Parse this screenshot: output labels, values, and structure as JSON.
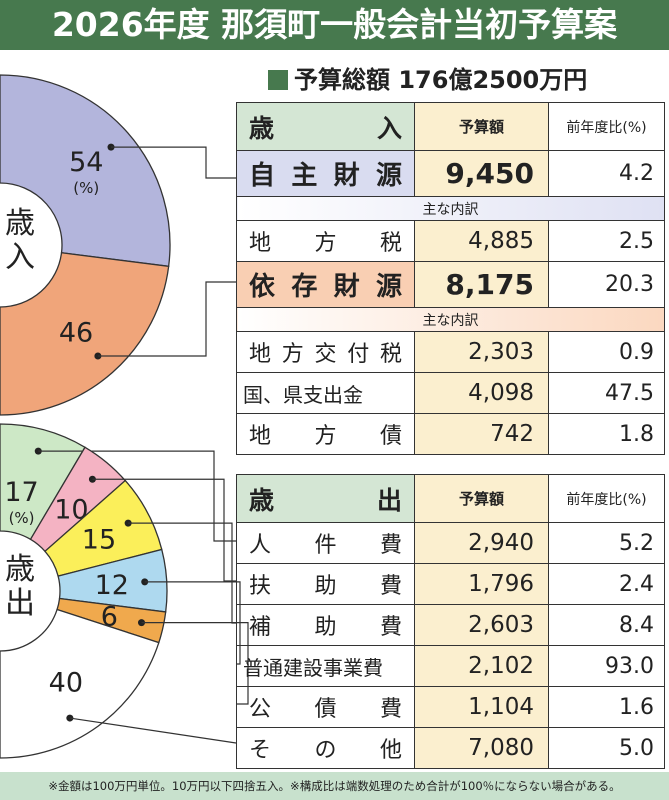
{
  "title": "2026年度 那須町一般会計当初予算案",
  "total_label": "予算総額 176億2500万円",
  "revenue_table": {
    "header": {
      "label": "歳入",
      "col_amount": "予算額",
      "col_pct": "前年度比(%)"
    },
    "rows": [
      {
        "label": "自主財源",
        "amount": "9,450",
        "pct": "4.2"
      },
      {
        "sub": "主な内訳"
      },
      {
        "label": "地方税",
        "amount": "4,885",
        "pct": "2.5"
      },
      {
        "label": "依存財源",
        "amount": "8,175",
        "pct": "20.3"
      },
      {
        "sub": "主な内訳"
      },
      {
        "label": "地方交付税",
        "amount": "2,303",
        "pct": "0.9"
      },
      {
        "label": "国、県支出金",
        "amount": "4,098",
        "pct": "47.5"
      },
      {
        "label": "地方債",
        "amount": "742",
        "pct": "1.8"
      }
    ]
  },
  "expense_table": {
    "header": {
      "label": "歳出",
      "col_amount": "予算額",
      "col_pct": "前年度比(%)"
    },
    "rows": [
      {
        "label": "人件費",
        "amount": "2,940",
        "pct": "5.2"
      },
      {
        "label": "扶助費",
        "amount": "1,796",
        "pct": "2.4"
      },
      {
        "label": "補助費",
        "amount": "2,603",
        "pct": "8.4"
      },
      {
        "label": "普通建設事業費",
        "amount": "2,102",
        "pct": "93.0"
      },
      {
        "label": "公債費",
        "amount": "1,104",
        "pct": "1.6"
      },
      {
        "label": "その他",
        "amount": "7,080",
        "pct": "5.0"
      }
    ]
  },
  "chart_data": [
    {
      "type": "pie",
      "center_label": "歳入",
      "unit_label": "(%)",
      "slices": [
        {
          "label": "54",
          "value": 54,
          "color": "#b3b5dc"
        },
        {
          "label": "46",
          "value": 46,
          "color": "#f0a57a"
        }
      ]
    },
    {
      "type": "pie",
      "center_label": "歳出",
      "unit_label": "(%)",
      "slices": [
        {
          "label": "17",
          "value": 17,
          "color": "#cde8c6"
        },
        {
          "label": "10",
          "value": 10,
          "color": "#f4b3c3"
        },
        {
          "label": "15",
          "value": 15,
          "color": "#fbef5a"
        },
        {
          "label": "12",
          "value": 12,
          "color": "#aed9ef"
        },
        {
          "label": "6",
          "value": 6,
          "color": "#f0a94d"
        },
        {
          "label": "40",
          "value": 40,
          "color": "#ffffff"
        }
      ]
    }
  ],
  "footnote": "※金額は100万円単位。10万円以下四捨五入。※構成比は端数処理のため合計が100％にならない場合がある。",
  "colors": {
    "header_green": "#47794e",
    "amount_bg": "#fbefcf",
    "table_head_bg": "#d4e6d4",
    "footnote_bg": "#c8e1cd"
  }
}
